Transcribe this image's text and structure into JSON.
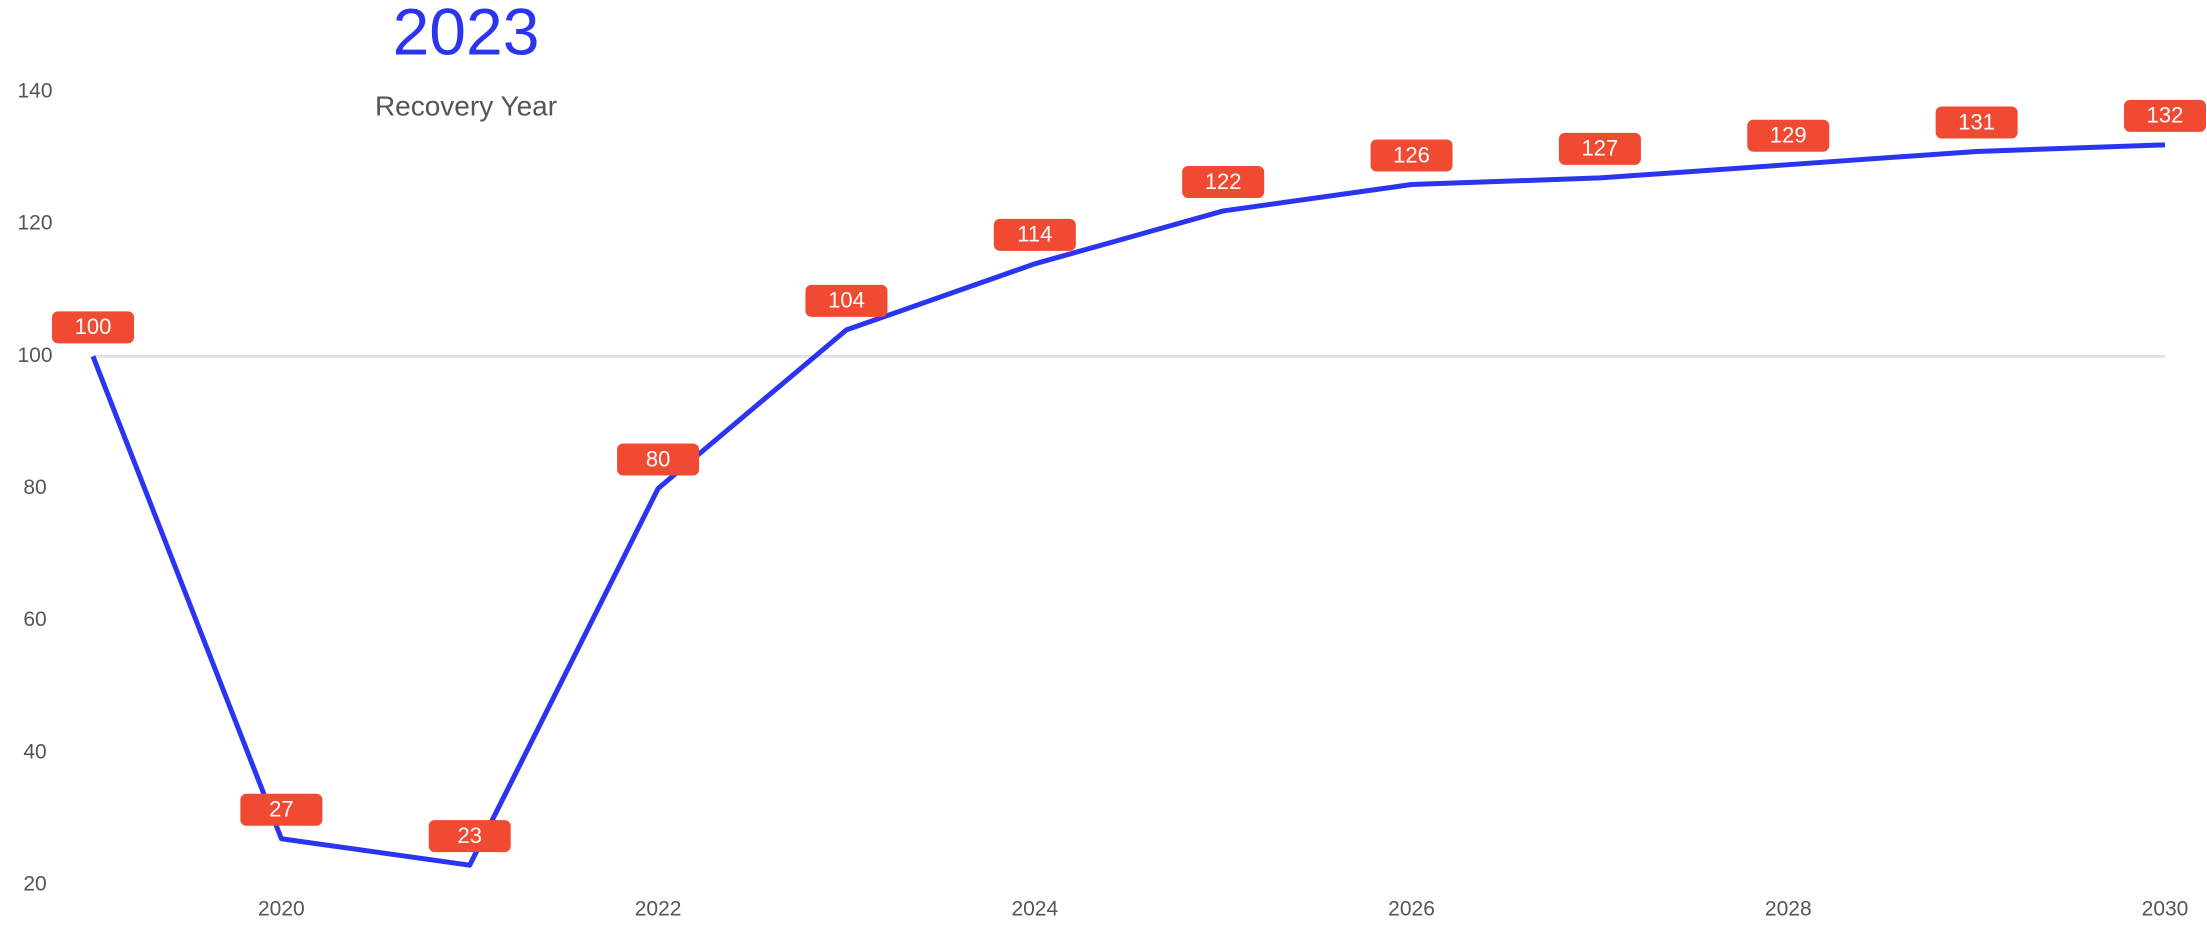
{
  "chart_data": {
    "type": "line",
    "annotation": {
      "title": "2023",
      "subtitle": "Recovery Year"
    },
    "x": [
      2019,
      2020,
      2021,
      2022,
      2023,
      2024,
      2025,
      2026,
      2027,
      2028,
      2029,
      2030
    ],
    "values": [
      100,
      27,
      23,
      80,
      104,
      114,
      122,
      126,
      127,
      129,
      131,
      132
    ],
    "color": "#2b35f0",
    "label_color": "#f04a32",
    "reference_line": 100,
    "reference_color": "#e2e2e2",
    "xlim": [
      2019,
      2030
    ],
    "xticks": [
      2020,
      2022,
      2024,
      2026,
      2028,
      2030
    ],
    "ylim": [
      20,
      140
    ],
    "yticks": [
      20,
      40,
      60,
      80,
      100,
      120,
      140
    ]
  }
}
